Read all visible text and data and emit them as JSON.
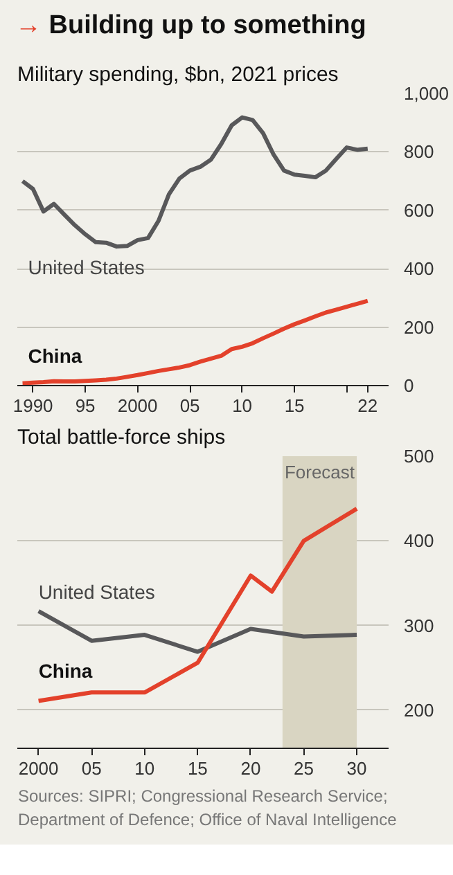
{
  "chart_data": [
    {
      "type": "line",
      "title": "→ Building up to something",
      "subtitle": "Military spending, $bn, 2021 prices",
      "x": [
        1989,
        1990,
        1991,
        1992,
        1993,
        1994,
        1995,
        1996,
        1997,
        1998,
        1999,
        2000,
        2001,
        2002,
        2003,
        2004,
        2005,
        2006,
        2007,
        2008,
        2009,
        2010,
        2011,
        2012,
        2013,
        2014,
        2015,
        2016,
        2017,
        2018,
        2019,
        2020,
        2021,
        2022
      ],
      "series": [
        {
          "name": "United States",
          "color": "#58585a",
          "values": [
            700,
            673,
            596,
            622,
            585,
            549,
            518,
            491,
            489,
            476,
            478,
            498,
            505,
            564,
            655,
            709,
            736,
            749,
            773,
            827,
            891,
            918,
            909,
            864,
            791,
            736,
            722,
            718,
            713,
            736,
            776,
            815,
            807,
            811
          ]
        },
        {
          "name": "China",
          "color": "#e3412b",
          "values": [
            8,
            10,
            12,
            15,
            14,
            14,
            16,
            18,
            20,
            24,
            30,
            36,
            43,
            50,
            56,
            62,
            70,
            82,
            92,
            102,
            125,
            133,
            145,
            162,
            178,
            195,
            210,
            223,
            237,
            250,
            260,
            270,
            280,
            290
          ]
        }
      ],
      "xlim": [
        1988.5,
        2024
      ],
      "xticks": [
        1990,
        {
          "value": 1995,
          "label": "95"
        },
        2000,
        {
          "value": 2005,
          "label": "05"
        },
        {
          "value": 2010,
          "label": "10"
        },
        {
          "value": 2015,
          "label": "15"
        },
        {
          "value": 2020,
          "label": null
        },
        {
          "value": 2022,
          "label": "22"
        }
      ],
      "ylim": [
        0,
        1000
      ],
      "yticks": [
        0,
        200,
        400,
        600,
        800,
        {
          "value": 1000,
          "label": "1,000"
        }
      ],
      "grid": "y",
      "legend": false,
      "marker": "none",
      "line_style": "solid"
    },
    {
      "type": "line",
      "title": "Total battle-force ships",
      "x": [
        2000,
        2005,
        2010,
        2015,
        2020,
        2022,
        2025,
        2030
      ],
      "series": [
        {
          "name": "United States",
          "color": "#58585a",
          "x": [
            2000,
            2005,
            2010,
            2015,
            2020,
            2025,
            2030
          ],
          "values": [
            317,
            282,
            289,
            269,
            296,
            287,
            289
          ]
        },
        {
          "name": "China",
          "color": "#e3412b",
          "values": [
            211,
            221,
            221,
            256,
            359,
            340,
            400,
            438
          ]
        }
      ],
      "xlim": [
        1998,
        2033
      ],
      "xticks": [
        2000,
        {
          "value": 2005,
          "label": "05"
        },
        {
          "value": 2010,
          "label": "10"
        },
        {
          "value": 2015,
          "label": "15"
        },
        {
          "value": 2020,
          "label": "20"
        },
        {
          "value": 2025,
          "label": "25"
        },
        {
          "value": 2030,
          "label": "30"
        }
      ],
      "ylim": [
        155,
        500
      ],
      "yticks": [
        200,
        300,
        400,
        500
      ],
      "bands": [
        {
          "axis": "x",
          "from": 2023,
          "to": 2030,
          "label": "Forecast",
          "color": "#d9d5c2"
        }
      ],
      "annotations": [
        "Sources: SIPRI; Congressional Research Service; Department of Defence; Office of Naval Intelligence"
      ],
      "grid": "y",
      "legend": false,
      "marker": "none",
      "line_style": "solid"
    }
  ]
}
